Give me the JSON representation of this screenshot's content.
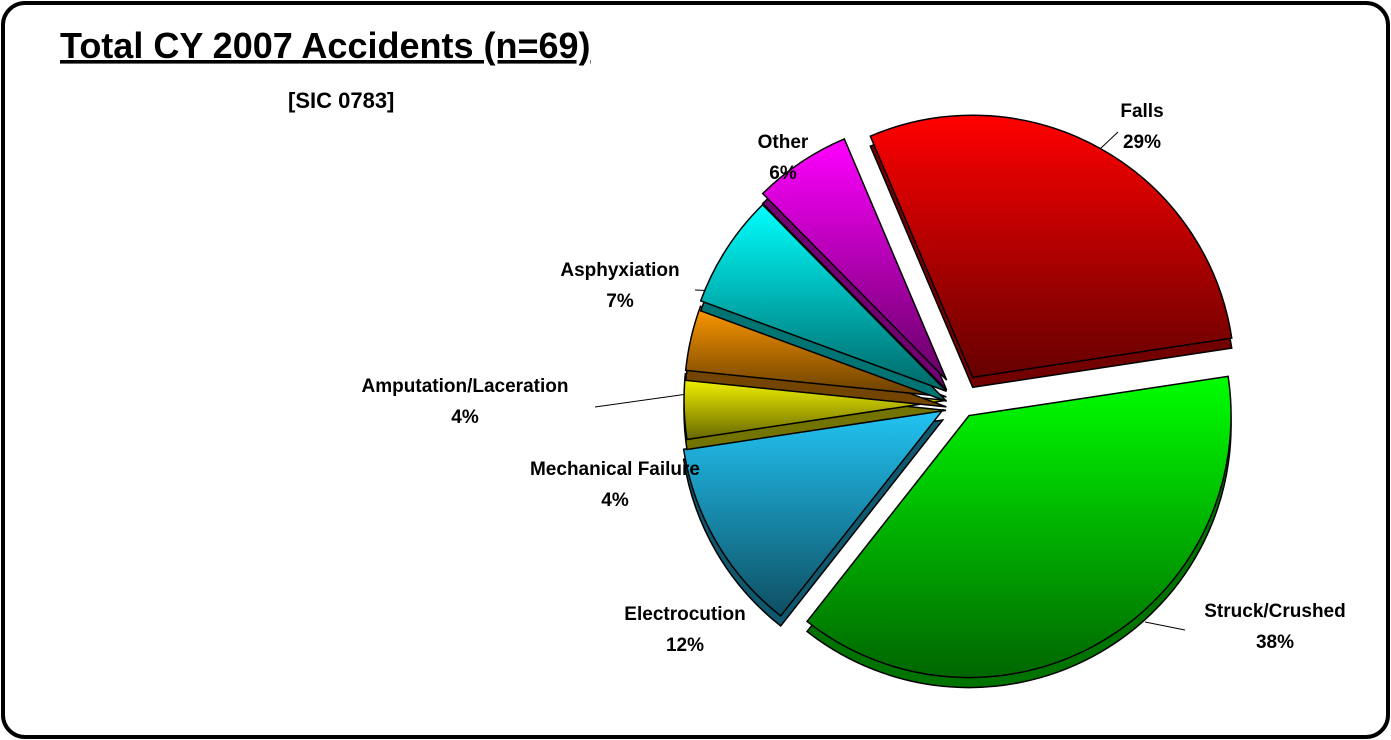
{
  "chart_data": {
    "type": "pie",
    "title": "Total CY 2007 Accidents (n=69)",
    "subtitle": "[SIC 0783]",
    "categories": [
      "Falls",
      "Struck/Crushed",
      "Electrocution",
      "Mechanical Failure",
      "Amputation/Laceration",
      "Asphyxiation",
      "Other"
    ],
    "values": [
      29,
      38,
      12,
      4,
      4,
      7,
      6
    ],
    "value_labels": [
      "29%",
      "38%",
      "12%",
      "4%",
      "4%",
      "7%",
      "6%"
    ],
    "colors": [
      "#ff0000",
      "#00ff00",
      "#22c4f4",
      "#ffff00",
      "#ff9900",
      "#00ffff",
      "#ff00ff"
    ]
  }
}
